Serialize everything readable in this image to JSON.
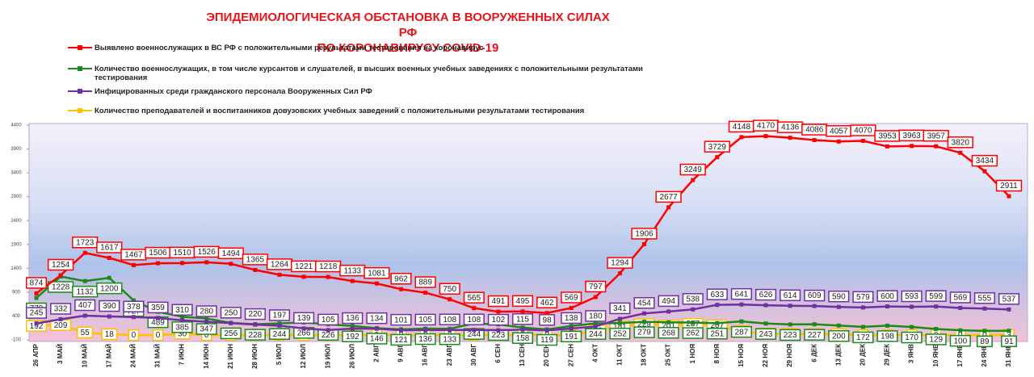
{
  "chart_data": {
    "type": "line",
    "title": "ЭПИДЕМИОЛОГИЧЕСКАЯ ОБСТАНОВКА В ВООРУЖЕННЫХ СИЛАХ РФ",
    "subtitle": "ПО КОРОНАВИРУСУ COVID-19",
    "categories": [
      "26 АПР",
      "3 МАЙ",
      "10 МАЙ",
      "17 МАЙ",
      "24 МАЙ",
      "31 МАЙ",
      "7 ИЮН",
      "14 ИЮН",
      "21 ИЮН",
      "28 ИЮН",
      "5 ИЮЛ",
      "12 ИЮЛ",
      "19 ИЮЛ",
      "26 ИЮЛ",
      "2 АВГ",
      "9 АВГ",
      "16 АВГ",
      "23 АВГ",
      "30 АВГ",
      "6 СЕН",
      "13 СЕН",
      "20 СЕН",
      "27 СЕН",
      "4 ОКТ",
      "11 ОКТ",
      "18 ОКТ",
      "25 ОКТ",
      "1 НОЯ",
      "8 НОЯ",
      "15 НОЯ",
      "22 НОЯ",
      "29 НОЯ",
      "6 ДЕК",
      "13 ДЕК",
      "20 ДЕК",
      "29 ДЕК",
      "3 ЯНВ",
      "10 ЯНВ",
      "17 ЯНВ",
      "24 ЯНВ",
      "31 ЯНВ"
    ],
    "series": [
      {
        "name": "Выявлено военнослужащих в ВС РФ с положительными результатами тестирования на коронавирус",
        "color": "#ff0000",
        "values": [
          874,
          1254,
          1723,
          1617,
          1467,
          1506,
          1510,
          1526,
          1494,
          1365,
          1264,
          1221,
          1218,
          1133,
          1081,
          962,
          889,
          750,
          565,
          491,
          495,
          462,
          569,
          797,
          1294,
          1906,
          2677,
          3249,
          3729,
          4148,
          4170,
          4136,
          4086,
          4057,
          4070,
          3953,
          3963,
          3957,
          3820,
          3434,
          2911
        ]
      },
      {
        "name": "Количество военнослужащих, в том числе курсантов и слушателей, в высших военных учебных заведениях с положительными результатами тестирования",
        "color": "#1a8a1a",
        "values": [
          779,
          1228,
          1132,
          1200,
          727,
          489,
          385,
          347,
          256,
          228,
          244,
          266,
          226,
          192,
          146,
          121,
          136,
          133,
          244,
          223,
          158,
          119,
          191,
          244,
          252,
          279,
          268,
          262,
          251,
          287,
          243,
          223,
          227,
          200,
          172,
          198,
          170,
          129,
          100,
          89,
          91
        ]
      },
      {
        "name": "Инфицированных среди гражданского персонала Вооруженных Сил РФ",
        "color": "#7030a0",
        "values": [
          245,
          332,
          407,
          390,
          378,
          359,
          310,
          280,
          250,
          220,
          197,
          139,
          105,
          136,
          134,
          101,
          105,
          108,
          108,
          102,
          115,
          98,
          138,
          180,
          341,
          454,
          494,
          538,
          633,
          641,
          626,
          614,
          609,
          590,
          579,
          600,
          593,
          599,
          569,
          555,
          537
        ]
      },
      {
        "name": "Количество преподавателей и воспитанников довузовских учебных заведений с положительными результатами тестирования",
        "color": "#ffc000",
        "values": [
          192,
          209,
          55,
          18,
          0,
          0,
          30,
          0,
          0,
          0,
          0,
          0,
          0,
          0,
          0,
          0,
          0,
          0,
          0,
          0,
          0,
          0,
          0,
          100,
          181,
          229,
          201,
          237,
          207,
          84,
          32,
          25,
          18,
          19,
          0,
          0,
          0,
          0,
          0,
          0,
          3
        ]
      }
    ],
    "ylim": [
      -100,
      4400
    ],
    "yticks": [
      -100,
      400,
      900,
      1400,
      1900,
      2400,
      2900,
      3400,
      3900,
      4400
    ],
    "grid": false
  }
}
